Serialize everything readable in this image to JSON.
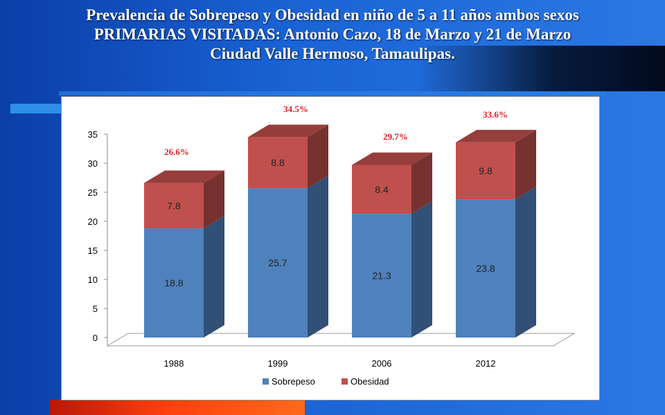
{
  "slide": {
    "title_lines": [
      "Prevalencia de Sobrepeso y Obesidad en niño de 5 a 11 años ambos sexos",
      "PRIMARIAS VISITADAS: Antonio Cazo, 18 de Marzo y 21 de Marzo",
      "Ciudad Valle Hermoso, Tamaulipas."
    ],
    "colors": {
      "background": "#1a64d6",
      "sobrepeso": "#4f81bd",
      "obesidad": "#c0504d",
      "annotation": "#e02020"
    }
  },
  "chart_data": {
    "type": "bar",
    "stacked": true,
    "three_d": true,
    "categories": [
      "1988",
      "1999",
      "2006",
      "2012"
    ],
    "series": [
      {
        "name": "Sobrepeso",
        "values": [
          18.8,
          25.7,
          21.3,
          23.8
        ],
        "color": "#4f81bd"
      },
      {
        "name": "Obesidad",
        "values": [
          7.8,
          8.8,
          8.4,
          9.8
        ],
        "color": "#c0504d"
      }
    ],
    "totals_labels": [
      "26.6%",
      "34.5%",
      "29.7%",
      "33.6%"
    ],
    "ylim": [
      0,
      35
    ],
    "yticks": [
      0,
      5,
      10,
      15,
      20,
      25,
      30,
      35
    ],
    "grid": false,
    "legend": "bottom"
  }
}
